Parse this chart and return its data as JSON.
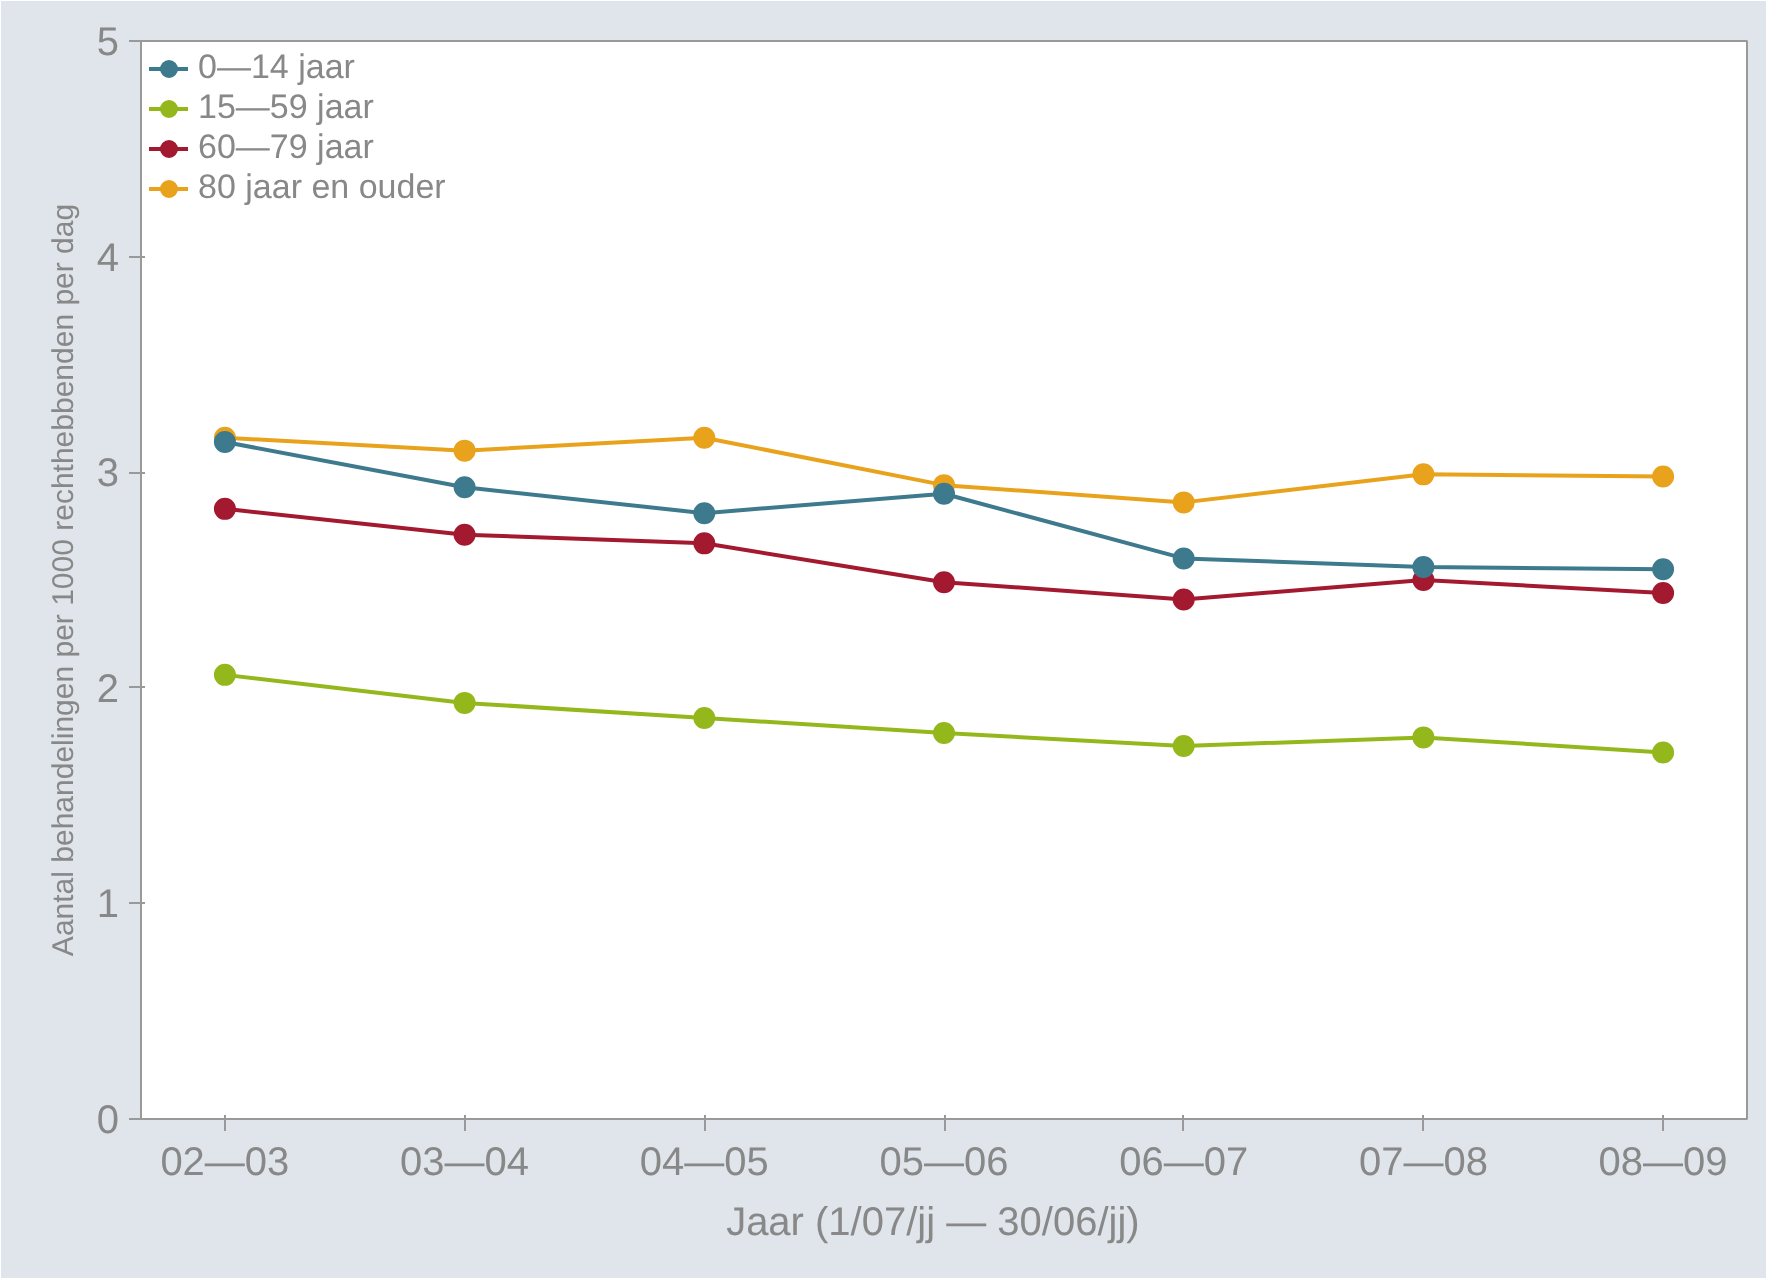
{
  "chart_data": {
    "type": "line",
    "xlabel": "Jaar (1/07/jj  —  30/06/jj)",
    "ylabel": "Aantal behandelingen per 1000 rechthebbenden per dag",
    "categories": [
      "02—03",
      "03—04",
      "04—05",
      "05—06",
      "06—07",
      "07—08",
      "08—09"
    ],
    "series": [
      {
        "name": "0—14 jaar",
        "color": "#3e7a8e",
        "values": [
          3.14,
          2.93,
          2.81,
          2.9,
          2.6,
          2.56,
          2.55
        ]
      },
      {
        "name": "15—59 jaar",
        "color": "#94b81c",
        "values": [
          2.06,
          1.93,
          1.86,
          1.79,
          1.73,
          1.77,
          1.7
        ]
      },
      {
        "name": "60—79 jaar",
        "color": "#a3192f",
        "values": [
          2.83,
          2.71,
          2.67,
          2.49,
          2.41,
          2.5,
          2.44
        ]
      },
      {
        "name": "80 jaar en ouder",
        "color": "#e9a21c",
        "values": [
          3.16,
          3.1,
          3.16,
          2.94,
          2.86,
          2.99,
          2.98
        ]
      }
    ],
    "ylim": [
      0,
      5
    ],
    "yticks": [
      0,
      1,
      2,
      3,
      4,
      5
    ],
    "grid": false,
    "legend": "top left",
    "marker": "circle",
    "line_style": "solid"
  }
}
